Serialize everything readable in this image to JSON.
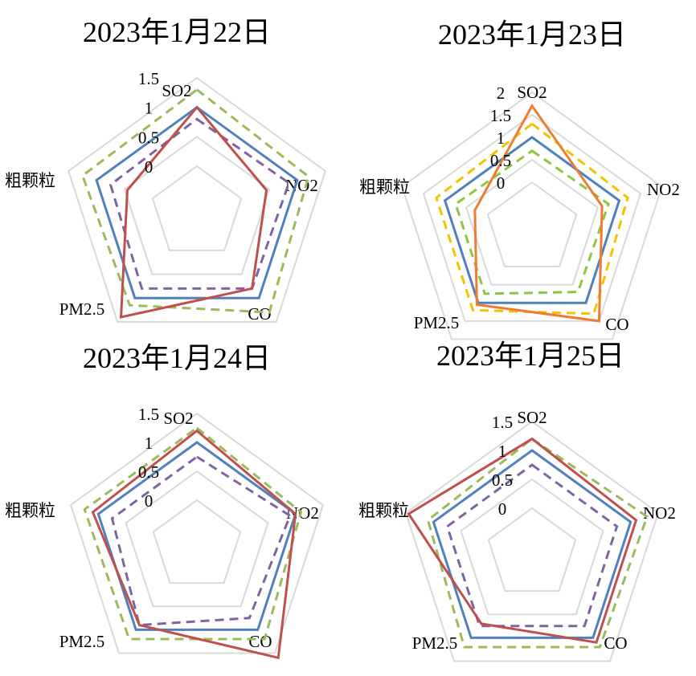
{
  "chart_data": [
    {
      "type": "radar",
      "title": "2023年1月22日",
      "axes": [
        "SO2",
        "NO2",
        "CO",
        "PM2.5",
        "粗颗粒"
      ],
      "rlim": [
        0,
        1.5
      ],
      "ticks": [
        "0",
        "0.5",
        "1",
        "1.5"
      ],
      "tick_values": [
        0,
        0.5,
        1,
        1.5
      ],
      "series": [
        {
          "name": "blue",
          "color": "#4f81bd",
          "dash": "solid",
          "values": [
            1.0,
            1.0,
            1.0,
            1.0,
            1.0
          ]
        },
        {
          "name": "green",
          "color": "#9bbb59",
          "dash": "dashed",
          "values": [
            1.3,
            1.2,
            1.3,
            1.15,
            1.25
          ]
        },
        {
          "name": "purple",
          "color": "#8064a2",
          "dash": "dashed",
          "values": [
            0.8,
            0.85,
            0.8,
            0.8,
            0.75
          ]
        },
        {
          "name": "red",
          "color": "#c0504d",
          "dash": "solid",
          "values": [
            1.0,
            0.45,
            0.8,
            1.4,
            0.45
          ]
        }
      ]
    },
    {
      "type": "radar",
      "title": "2023年1月23日",
      "axes": [
        "SO2",
        "NO2",
        "CO",
        "PM2.5",
        "粗颗粒"
      ],
      "rlim": [
        0,
        2
      ],
      "ticks": [
        "0",
        "0.5",
        "1",
        "1.5",
        "2"
      ],
      "tick_values": [
        0,
        0.5,
        1,
        1.5,
        2
      ],
      "series": [
        {
          "name": "blue",
          "color": "#4f81bd",
          "dash": "solid",
          "values": [
            1.0,
            1.0,
            1.0,
            1.0,
            1.0
          ]
        },
        {
          "name": "yellow",
          "color": "#f2c300",
          "dash": "dashed",
          "values": [
            1.3,
            1.2,
            1.3,
            1.2,
            1.2
          ]
        },
        {
          "name": "green",
          "color": "#8dc63f",
          "dash": "dashed",
          "values": [
            0.7,
            0.75,
            0.7,
            0.75,
            0.75
          ]
        },
        {
          "name": "orange",
          "color": "#ed7d31",
          "dash": "solid",
          "values": [
            1.7,
            0.6,
            1.5,
            1.05,
            0.3
          ]
        }
      ]
    },
    {
      "type": "radar",
      "title": "2023年1月24日",
      "axes": [
        "SO2",
        "NO2",
        "CO",
        "PM2.5",
        "粗颗粒"
      ],
      "rlim": [
        0,
        1.5
      ],
      "ticks": [
        "0",
        "0.5",
        "1",
        "1.5"
      ],
      "tick_values": [
        0,
        0.5,
        1,
        1.5
      ],
      "series": [
        {
          "name": "blue",
          "color": "#4f81bd",
          "dash": "solid",
          "values": [
            1.0,
            1.0,
            1.0,
            1.0,
            1.0
          ]
        },
        {
          "name": "green",
          "color": "#9bbb59",
          "dash": "dashed",
          "values": [
            1.25,
            1.1,
            1.2,
            1.2,
            1.25
          ]
        },
        {
          "name": "purple",
          "color": "#8064a2",
          "dash": "dashed",
          "values": [
            0.75,
            0.9,
            0.75,
            0.9,
            0.75
          ]
        },
        {
          "name": "red",
          "color": "#c0504d",
          "dash": "solid",
          "values": [
            1.2,
            1.0,
            1.6,
            0.9,
            1.1
          ]
        }
      ]
    },
    {
      "type": "radar",
      "title": "2023年1月25日",
      "axes": [
        "SO2",
        "NO2",
        "CO",
        "PM2.5",
        "粗颗粒"
      ],
      "rlim": [
        0,
        1.5
      ],
      "ticks": [
        "0",
        "0.5",
        "1",
        "1.5"
      ],
      "tick_values": [
        0,
        0.5,
        1,
        1.5
      ],
      "series": [
        {
          "name": "blue",
          "color": "#4f81bd",
          "dash": "solid",
          "values": [
            1.0,
            1.0,
            1.0,
            1.0,
            1.0
          ]
        },
        {
          "name": "green",
          "color": "#9bbb59",
          "dash": "dashed",
          "values": [
            1.2,
            1.3,
            1.2,
            1.2,
            1.1
          ]
        },
        {
          "name": "purple",
          "color": "#8064a2",
          "dash": "dashed",
          "values": [
            0.75,
            0.75,
            0.75,
            0.75,
            0.75
          ]
        },
        {
          "name": "red",
          "color": "#c0504d",
          "dash": "solid",
          "values": [
            1.2,
            1.1,
            1.1,
            0.7,
            1.45
          ]
        }
      ]
    }
  ]
}
